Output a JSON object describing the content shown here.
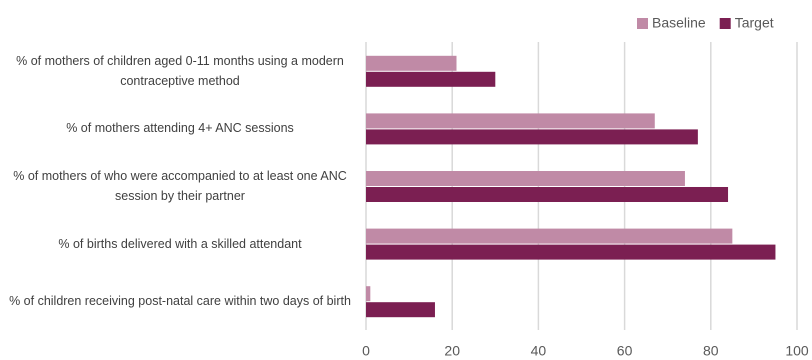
{
  "chart_data": {
    "type": "hbar",
    "categories": [
      "% of mothers of children aged 0-11 months using a modern contraceptive method",
      "% of mothers attending 4+ ANC sessions",
      "% of mothers of who were accompanied to at least one ANC session by their partner",
      "% of births delivered with a skilled attendant",
      "% of children receiving post-natal care within two days of birth"
    ],
    "series": [
      {
        "name": "Baseline",
        "color": "#c08aa6",
        "values": [
          21,
          67,
          74,
          85,
          1
        ]
      },
      {
        "name": "Target",
        "color": "#7b1f52",
        "values": [
          30,
          77,
          84,
          95,
          16
        ]
      }
    ],
    "xlim": [
      0,
      100
    ],
    "xticks": [
      0,
      20,
      40,
      60,
      80,
      100
    ],
    "grid": true,
    "legend": "top-right"
  }
}
